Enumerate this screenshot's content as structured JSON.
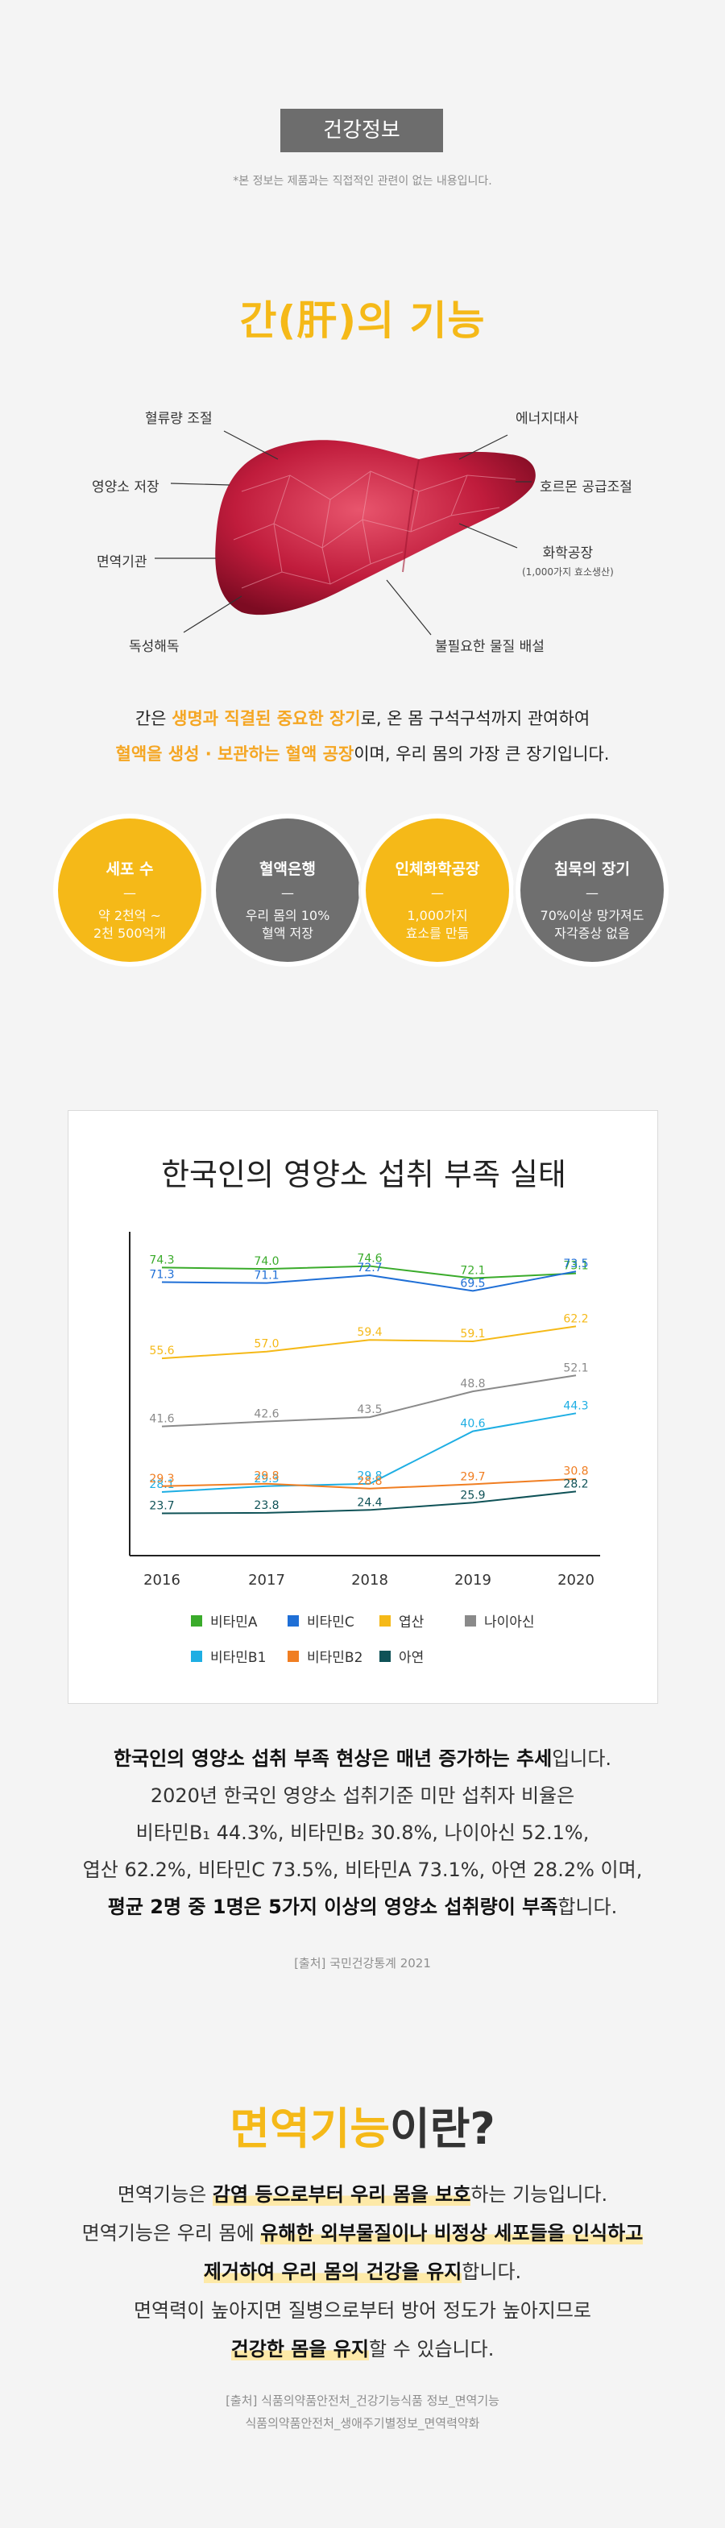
{
  "header": {
    "badge": "건강정보",
    "note": "*본 정보는 제품과는 직접적인 관련이 없는 내용입니다."
  },
  "liver": {
    "title": "간(肝)의 기능",
    "labels": {
      "blood_flow": "혈류량 조절",
      "nutrient": "영양소 저장",
      "immune": "면역기관",
      "detox": "독성해독",
      "energy": "에너지대사",
      "hormone": "호르몬 공급조절",
      "chem_factory": "화학공장",
      "chem_sub": "(1,000가지 효소생산)",
      "excretion": "불필요한 물질 배설"
    },
    "desc": {
      "l1_a": "간은 ",
      "l1_hl": "생명과 직결된 중요한 장기",
      "l1_b": "로, 온 몸 구석구석까지 관여하여",
      "l2_hl": "혈액을 생성 · 보관하는 혈액 공장",
      "l2_b": "이며, 우리 몸의 가장 큰 장기입니다."
    },
    "circles": [
      {
        "title": "세포 수",
        "dash": "—",
        "value": "약 2천억 ~\n2천 500억개",
        "color": "#f5b918"
      },
      {
        "title": "혈액은행",
        "dash": "—",
        "value": "우리 몸의 10%\n혈액 저장",
        "color": "#6f6f6f"
      },
      {
        "title": "인체화학공장",
        "dash": "—",
        "value": "1,000가지\n효소를 만듦",
        "color": "#f5b918"
      },
      {
        "title": "침묵의 장기",
        "dash": "—",
        "value": "70%이상 망가져도\n자각증상 없음",
        "color": "#6f6f6f"
      }
    ]
  },
  "chart_data": {
    "type": "line",
    "title": "한국인의 영양소 섭취 부족 실태",
    "x": [
      "2016",
      "2017",
      "2018",
      "2019",
      "2020"
    ],
    "xlabel": "",
    "ylabel": "",
    "ylim": [
      15,
      80
    ],
    "legend_position": "bottom",
    "series": [
      {
        "name": "비타민A",
        "color": "#3aab2b",
        "values": [
          74.3,
          74.0,
          74.6,
          72.1,
          73.1
        ]
      },
      {
        "name": "비타민C",
        "color": "#1f6fd6",
        "values": [
          71.3,
          71.1,
          72.7,
          69.5,
          73.5
        ]
      },
      {
        "name": "엽산",
        "color": "#f5b918",
        "values": [
          55.6,
          57.0,
          59.4,
          59.1,
          62.2
        ]
      },
      {
        "name": "나이아신",
        "color": "#8a8a8a",
        "values": [
          41.6,
          42.6,
          43.5,
          48.8,
          52.1
        ]
      },
      {
        "name": "비타민B1",
        "color": "#1eaee3",
        "values": [
          28.1,
          29.3,
          29.8,
          40.6,
          44.3
        ]
      },
      {
        "name": "비타민B2",
        "color": "#f07e22",
        "values": [
          29.3,
          29.8,
          28.8,
          29.7,
          30.8
        ]
      },
      {
        "name": "아연",
        "color": "#0f5257",
        "values": [
          23.7,
          23.8,
          24.4,
          25.9,
          28.2
        ]
      }
    ]
  },
  "summary": {
    "l1_b": "한국인의 영양소 섭취 부족 현상은 매년 증가하는 추세",
    "l1_t": "입니다.",
    "l2": "2020년 한국인 영양소 섭취기준 미만 섭취자 비율은",
    "l3": "비타민B₁ 44.3%, 비타민B₂ 30.8%, 나이아신 52.1%,",
    "l4": "엽산 62.2%, 비타민C 73.5%, 비타민A 73.1%, 아연 28.2% 이며,",
    "l5_b": "평균 2명 중 1명은 5가지 이상의 영양소 섭취량이 부족",
    "l5_t": "합니다.",
    "source": "[출처] 국민건강통계 2021"
  },
  "immune": {
    "title_y": "면역기능",
    "title_t": "이란?",
    "l1_a": "면역기능은 ",
    "l1_b": "감염 등으로부터 우리 몸을 보호",
    "l1_c": "하는 기능입니다.",
    "l2_a": "면역기능은 우리 몸에 ",
    "l2_b": "유해한 외부물질이나 비정상 세포들을 인식하고",
    "l3_b": "제거하여 우리 몸의 건강을 유지",
    "l3_c": "합니다.",
    "l4": "면역력이 높아지면 질병으로부터 방어 정도가 높아지므로",
    "l5_b": "건강한 몸을 유지",
    "l5_c": "할 수 있습니다.",
    "source1": "[출처] 식품의약품안전처_건강기능식품 정보_면역기능",
    "source2": "식품의약품안전처_생애주기별정보_면역력약화"
  }
}
